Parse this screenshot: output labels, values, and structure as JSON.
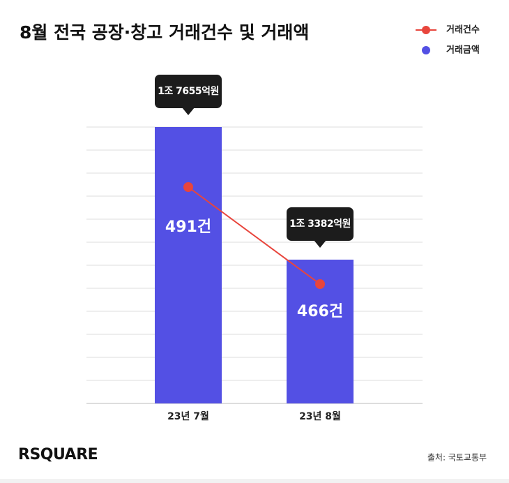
{
  "chart_data": {
    "type": "combo",
    "title": "8월 전국 공장·창고 거래건수 및 거래액",
    "categories": [
      "23년 7월",
      "23년 8월"
    ],
    "series": [
      {
        "name": "거래건수",
        "type": "line",
        "color": "#e8453c",
        "values": [
          491,
          466
        ],
        "value_labels": [
          "491건",
          "466건"
        ]
      },
      {
        "name": "거래금액",
        "type": "bar",
        "color": "#5350e4",
        "values": [
          17655,
          13382
        ],
        "value_labels": [
          "1조 7655억원",
          "1조 3382억원"
        ]
      }
    ]
  },
  "footer": {
    "logo": "RSQUARE",
    "source": "출처: 국토교통부"
  }
}
